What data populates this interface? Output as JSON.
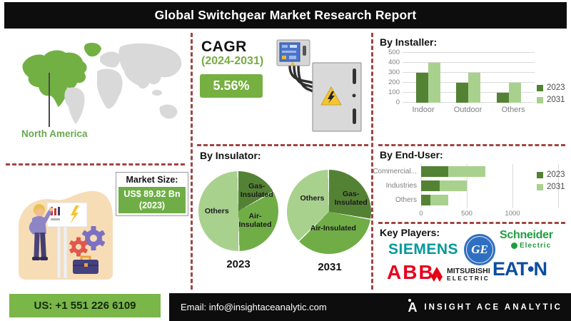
{
  "title": "Global Switchgear Market Research Report",
  "region": {
    "label": "North America"
  },
  "cagr": {
    "heading": "CAGR",
    "period": "(2024-2031)",
    "value": "5.56%"
  },
  "market_size": {
    "label": "Market Size:",
    "value": "US$ 89.82 Bn",
    "year": "(2023)"
  },
  "key_players": {
    "title": "Key Players:",
    "companies": [
      "SIEMENS",
      "GE",
      "Schneider Electric",
      "ABB",
      "MITSUBISHI ELECTRIC",
      "EATON"
    ],
    "logos": {
      "siemens": "SIEMENS",
      "ge_monogram": "GE",
      "schneider_line1": "Schneider",
      "schneider_line2": "Electric",
      "abb": "ABB",
      "mitsubishi_line1": "MITSUBISHI",
      "mitsubishi_line2": "ELECTRIC",
      "eaton": "EAT•N"
    }
  },
  "footer": {
    "phone": "US: +1 551 226 6109",
    "email": "Email: info@insightaceanalytic.com",
    "brand": "INSIGHT ACE ANALYTIC"
  },
  "colors": {
    "series_2023": "#548235",
    "series_2031": "#a9d18e",
    "pie_mid_green": "#70ad47",
    "accent_green": "#76b041",
    "footer_green": "#7ab648",
    "map_highlight": "#72b043",
    "map_gray": "#d9d9d9",
    "dashed_divider": "#a04545",
    "siemens_teal": "#009999",
    "schneider_green": "#1f9e3f",
    "ge_blue": "#2f6fc1",
    "abb_red": "#e8001c",
    "mitsubishi_red": "#e60012",
    "eaton_blue": "#0b4da2"
  },
  "chart_data": [
    {
      "name": "By Installer:",
      "type": "bar",
      "categories": [
        "Indoor",
        "Outdoor",
        "Others"
      ],
      "series": [
        {
          "name": "2023",
          "color": "#548235",
          "values": [
            300,
            200,
            100
          ]
        },
        {
          "name": "2031",
          "color": "#a9d18e",
          "values": [
            400,
            300,
            200
          ]
        }
      ],
      "ylim": [
        0,
        500
      ],
      "yticks": [
        0,
        100,
        200,
        300,
        400,
        500
      ],
      "grid": true,
      "legend_position": "right"
    },
    {
      "name": "By Insulator:",
      "type": "pie",
      "pies": [
        {
          "label": "2023",
          "slices": [
            {
              "label": "Gas-Insulated",
              "pct": 17,
              "color": "#548235"
            },
            {
              "label": "Air-Insulated",
              "pct": 33,
              "color": "#70ad47"
            },
            {
              "label": "Others",
              "pct": 50,
              "color": "#a9d18e"
            }
          ]
        },
        {
          "label": "2031",
          "slices": [
            {
              "label": "Gas-Insulated",
              "pct": 28,
              "color": "#548235"
            },
            {
              "label": "Air-Insulated",
              "pct": 35,
              "color": "#70ad47"
            },
            {
              "label": "Others",
              "pct": 37,
              "color": "#a9d18e"
            }
          ]
        }
      ]
    },
    {
      "name": "By End-User:",
      "type": "stacked-bar-horizontal",
      "categories": [
        "Commercial...",
        "Industries",
        "Others"
      ],
      "series": [
        {
          "name": "2023",
          "color": "#548235",
          "values": [
            300,
            200,
            100
          ]
        },
        {
          "name": "2031",
          "color": "#a9d18e",
          "values": [
            400,
            300,
            200
          ]
        }
      ],
      "xlim": [
        0,
        1500
      ],
      "xticks": [
        0,
        500,
        1000
      ],
      "gridlines": [
        0,
        500,
        1000,
        1500
      ],
      "grid": true,
      "legend_position": "right"
    }
  ]
}
